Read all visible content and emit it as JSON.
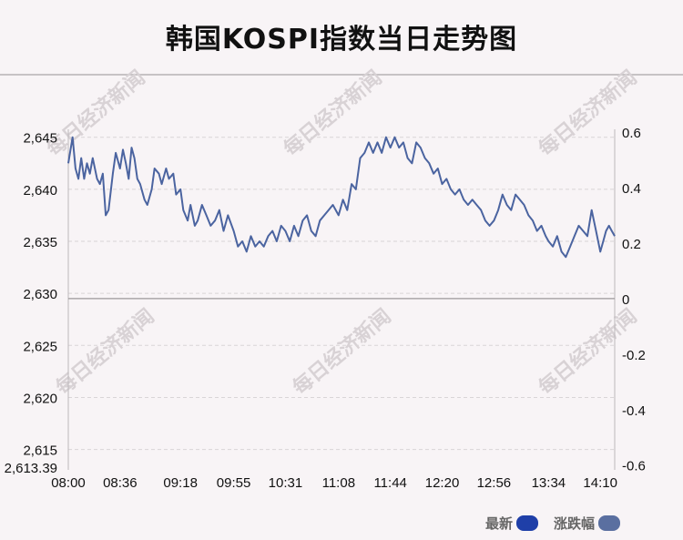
{
  "title": "韩国KOSPI指数当日走势图",
  "watermark": "每日经济新闻",
  "legend": {
    "latest": {
      "label": "最新",
      "color": "#1f3fa8"
    },
    "change": {
      "label": "涨跌幅",
      "color": "#5a6fa0"
    }
  },
  "chart_data": {
    "type": "line",
    "title": "韩国KOSPI指数当日走势图",
    "xlabel": "",
    "ylabel": "",
    "x_ticks": [
      "08:00",
      "08:36",
      "09:18",
      "09:55",
      "10:31",
      "11:08",
      "11:44",
      "12:20",
      "12:56",
      "13:34",
      "14:10"
    ],
    "y_left": {
      "ticks": [
        "2,645",
        "2,640",
        "2,635",
        "2,630",
        "2,625",
        "2,620",
        "2,615"
      ],
      "min_label": "2,613.39",
      "min": 2613.39,
      "max": 2645.5
    },
    "y_right": {
      "ticks": [
        "0.6",
        "0.4",
        "0.2",
        "0",
        "-0.2",
        "-0.4",
        "-0.6"
      ],
      "min": -0.6,
      "max": 0.6
    },
    "reference_value": 2629.5,
    "grid": true,
    "series": [
      {
        "name": "最新",
        "color": "#4b64a0",
        "x": [
          "08:00",
          "08:03",
          "08:05",
          "08:07",
          "08:09",
          "08:11",
          "08:13",
          "08:15",
          "08:17",
          "08:20",
          "08:22",
          "08:24",
          "08:26",
          "08:28",
          "08:31",
          "08:33",
          "08:36",
          "08:38",
          "08:40",
          "08:42",
          "08:44",
          "08:46",
          "08:48",
          "08:50",
          "08:53",
          "08:55",
          "08:58",
          "09:00",
          "09:03",
          "09:05",
          "09:08",
          "09:10",
          "09:13",
          "09:15",
          "09:18",
          "09:20",
          "09:23",
          "09:25",
          "09:28",
          "09:30",
          "09:33",
          "09:36",
          "09:39",
          "09:42",
          "09:45",
          "09:48",
          "09:51",
          "09:55",
          "09:58",
          "10:01",
          "10:04",
          "10:07",
          "10:10",
          "10:13",
          "10:16",
          "10:19",
          "10:22",
          "10:25",
          "10:28",
          "10:31",
          "10:34",
          "10:37",
          "10:40",
          "10:43",
          "10:46",
          "10:49",
          "10:52",
          "10:55",
          "10:58",
          "11:01",
          "11:04",
          "11:08",
          "11:11",
          "11:14",
          "11:17",
          "11:20",
          "11:23",
          "11:26",
          "11:29",
          "11:32",
          "11:35",
          "11:38",
          "11:41",
          "11:44",
          "11:47",
          "11:50",
          "11:53",
          "11:56",
          "11:59",
          "12:02",
          "12:05",
          "12:08",
          "12:11",
          "12:14",
          "12:17",
          "12:20",
          "12:23",
          "12:26",
          "12:29",
          "12:32",
          "12:35",
          "12:38",
          "12:41",
          "12:44",
          "12:47",
          "12:50",
          "12:53",
          "12:56",
          "12:59",
          "13:02",
          "13:05",
          "13:08",
          "13:11",
          "13:14",
          "13:17",
          "13:20",
          "13:23",
          "13:26",
          "13:29",
          "13:32",
          "13:34",
          "13:37",
          "13:40",
          "13:43",
          "13:46",
          "13:49",
          "13:52",
          "13:55",
          "13:58",
          "14:01",
          "14:04",
          "14:07",
          "14:10",
          "14:12",
          "14:14",
          "14:16",
          "14:18",
          "14:20"
        ],
        "values": [
          2642.5,
          2645.0,
          2642.0,
          2641.0,
          2643.0,
          2641.0,
          2642.5,
          2641.5,
          2643.0,
          2641.0,
          2640.5,
          2641.5,
          2637.5,
          2638.0,
          2641.5,
          2643.5,
          2642.0,
          2643.8,
          2642.5,
          2641.0,
          2644.0,
          2643.0,
          2641.0,
          2640.5,
          2639.0,
          2638.5,
          2640.0,
          2642.0,
          2641.5,
          2640.5,
          2642.0,
          2641.0,
          2641.5,
          2639.5,
          2640.0,
          2638.0,
          2637.0,
          2638.5,
          2636.5,
          2637.0,
          2638.5,
          2637.5,
          2636.5,
          2637.0,
          2638.0,
          2636.0,
          2637.5,
          2636.0,
          2634.5,
          2635.0,
          2634.0,
          2635.5,
          2634.5,
          2635.0,
          2634.5,
          2635.5,
          2636.0,
          2635.0,
          2636.5,
          2636.0,
          2635.0,
          2636.5,
          2635.5,
          2637.0,
          2637.5,
          2636.0,
          2635.5,
          2637.0,
          2637.5,
          2638.0,
          2638.5,
          2637.5,
          2639.0,
          2638.0,
          2640.5,
          2640.0,
          2643.0,
          2643.5,
          2644.5,
          2643.5,
          2644.5,
          2643.5,
          2645.0,
          2644.0,
          2645.0,
          2644.0,
          2644.5,
          2643.0,
          2642.5,
          2644.5,
          2644.0,
          2643.0,
          2642.5,
          2641.5,
          2642.0,
          2640.5,
          2641.0,
          2640.0,
          2639.5,
          2640.0,
          2639.0,
          2638.5,
          2639.0,
          2638.5,
          2638.0,
          2637.0,
          2636.5,
          2637.0,
          2638.0,
          2639.5,
          2638.5,
          2638.0,
          2639.5,
          2639.0,
          2638.5,
          2637.5,
          2637.0,
          2636.0,
          2636.5,
          2635.5,
          2635.0,
          2634.5,
          2635.5,
          2634.0,
          2633.5,
          2634.5,
          2635.5,
          2636.5,
          2636.0,
          2635.5,
          2638.0,
          2636.0,
          2634.0,
          2635.0,
          2636.0,
          2636.5,
          2636.0,
          2635.5
        ]
      }
    ]
  }
}
